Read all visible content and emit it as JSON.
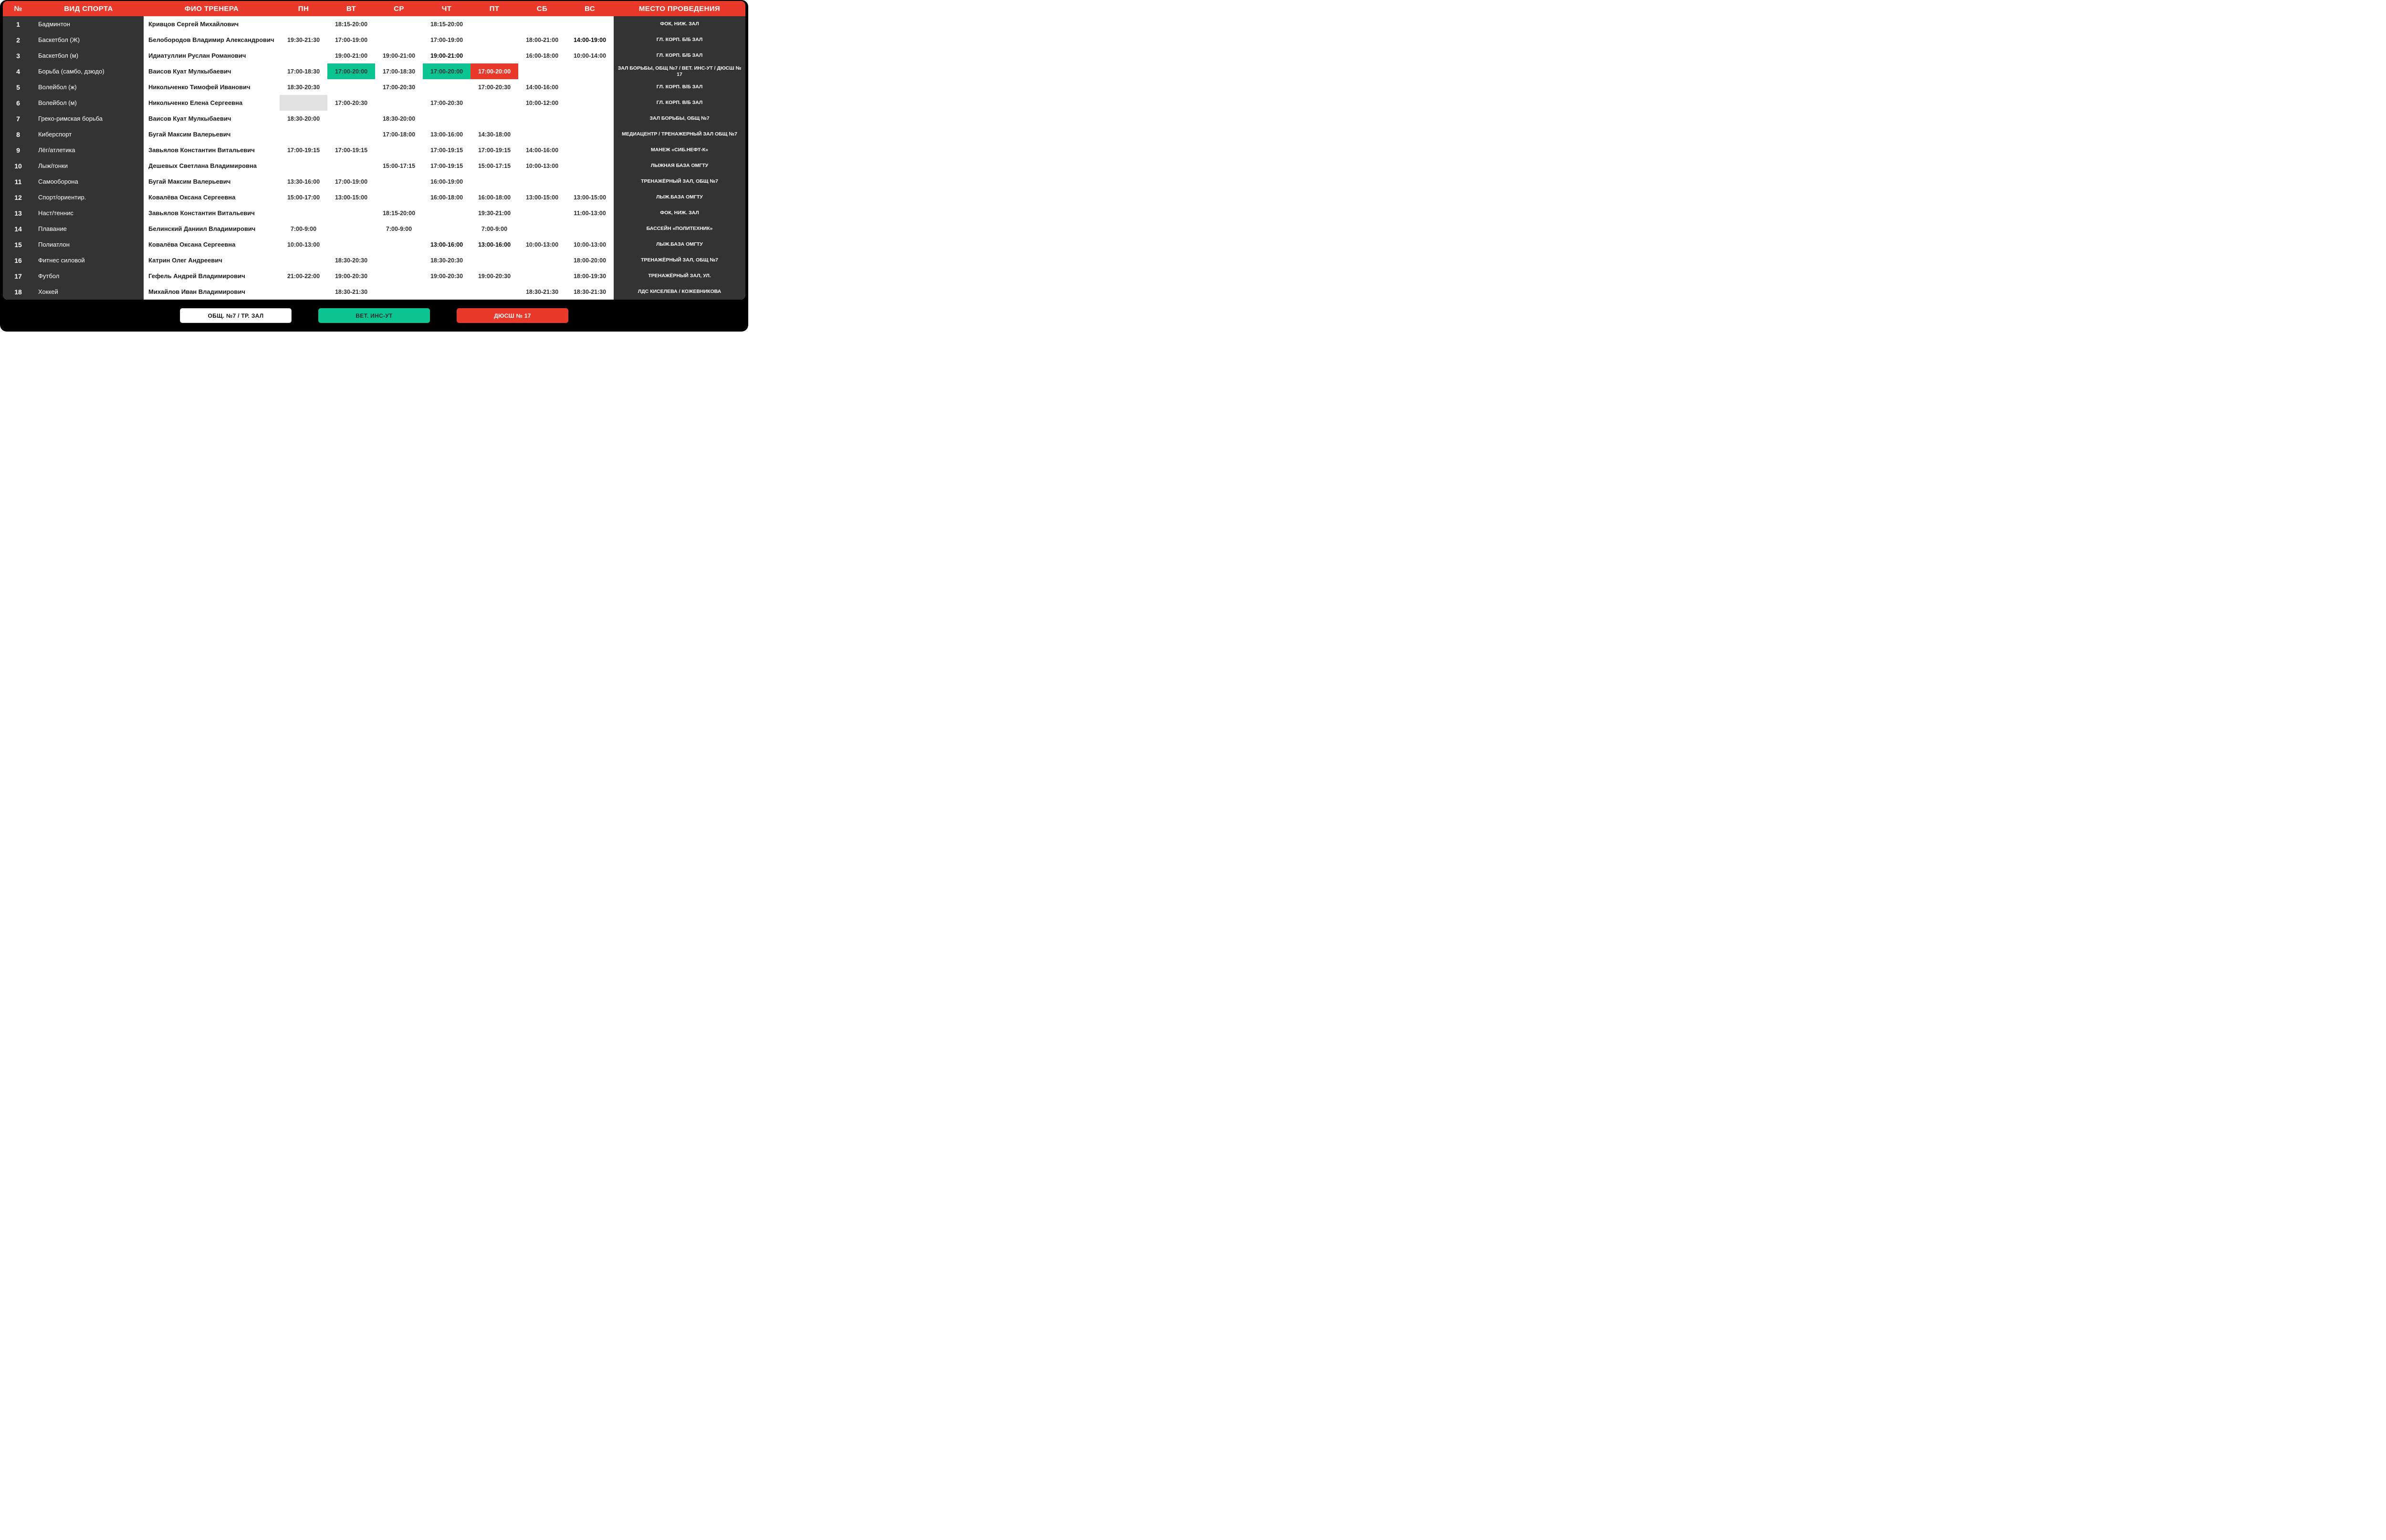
{
  "header": {
    "num": "№",
    "sport": "ВИД СПОРТА",
    "trainer": "ФИО ТРЕНЕРА",
    "days": [
      "ПН",
      "ВТ",
      "СР",
      "ЧТ",
      "ПТ",
      "СБ",
      "ВС"
    ],
    "venue": "МЕСТО ПРОВЕДЕНИЯ"
  },
  "colors": {
    "header_red": "#e8392b",
    "panel_dark": "#333333",
    "cell_green": "#0bc491",
    "cell_red": "#e8392b",
    "cell_gray": "#e2e2e2",
    "background": "#000000"
  },
  "rows": [
    {
      "num": "1",
      "sport": "Бадминтон",
      "trainer": "Кривцов Сергей Михайлович",
      "days": [
        null,
        {
          "t": "18:15-20:00"
        },
        null,
        {
          "t": "18:15-20:00"
        },
        null,
        null,
        null
      ],
      "venue": "ФОК,  НИЖ. ЗАЛ"
    },
    {
      "num": "2",
      "sport": "Баскетбол (Ж)",
      "trainer": "Белобородов Владимир Александрович",
      "days": [
        {
          "t": "19:30-21:30"
        },
        {
          "t": "17:00-19:00"
        },
        null,
        {
          "t": "17:00-19:00"
        },
        null,
        {
          "t": "18:00-21:00"
        },
        {
          "t": "14:00-19:00",
          "bold": true
        }
      ],
      "venue": "ГЛ. КОРП. Б/Б ЗАЛ"
    },
    {
      "num": "3",
      "sport": "Баскетбол (м)",
      "trainer": "Идиатуллин Руслан Романович",
      "days": [
        null,
        {
          "t": "19:00-21:00"
        },
        {
          "t": "19:00-21:00"
        },
        {
          "t": "19:00-21:00",
          "bold": true
        },
        null,
        {
          "t": "16:00-18:00"
        },
        {
          "t": "10:00-14:00"
        }
      ],
      "venue": "ГЛ. КОРП. Б/Б ЗАЛ"
    },
    {
      "num": "4",
      "sport": "Борьба  (самбо, дзюдо)",
      "trainer": "Ваисов Куат Мулкыбаевич",
      "days": [
        {
          "t": "17:00-18:30"
        },
        {
          "t": "17:00-20:00",
          "bg": "green"
        },
        {
          "t": "17:00-18:30"
        },
        {
          "t": "17:00-20:00",
          "bg": "green"
        },
        {
          "t": "17:00-20:00",
          "bg": "red"
        },
        null,
        null
      ],
      "venue": "ЗАЛ БОРЬБЫ, ОБЩ №7 / ВЕТ. ИНС-УТ / ДЮСШ № 17"
    },
    {
      "num": "5",
      "sport": "Волейбол  (ж)",
      "trainer": "Никольченко Тимофей Иванович",
      "days": [
        {
          "t": "18:30-20:30"
        },
        null,
        {
          "t": "17:00-20:30"
        },
        null,
        {
          "t": "17:00-20:30"
        },
        {
          "t": "14:00-16:00"
        },
        null
      ],
      "venue": "ГЛ. КОРП. В/Б ЗАЛ"
    },
    {
      "num": "6",
      "sport": "Волейбол  (м)",
      "trainer": "Никольченко Елена Сергеевна",
      "days": [
        {
          "t": "",
          "bg": "gray"
        },
        {
          "t": "17:00-20:30"
        },
        null,
        {
          "t": "17:00-20:30"
        },
        null,
        {
          "t": "10:00-12:00"
        },
        null
      ],
      "venue": "ГЛ. КОРП. В/Б ЗАЛ"
    },
    {
      "num": "7",
      "sport": "Греко-римская борьба",
      "trainer": "Ваисов Куат Мулкыбаевич",
      "days": [
        {
          "t": "18:30-20:00"
        },
        null,
        {
          "t": "18:30-20:00"
        },
        null,
        null,
        null,
        null
      ],
      "venue": "ЗАЛ БОРЬБЫ, ОБЩ №7"
    },
    {
      "num": "8",
      "sport": "Киберспорт",
      "trainer": "Бугай Максим Валерьевич",
      "days": [
        null,
        null,
        {
          "t": "17:00-18:00"
        },
        {
          "t": "13:00-16:00"
        },
        {
          "t": "14:30-18:00"
        },
        null,
        null
      ],
      "venue": "МЕДИАЦЕНТР / ТРЕНАЖЕРНЫЙ ЗАЛ ОБЩ №7"
    },
    {
      "num": "9",
      "sport": "Лёг/атлетика",
      "trainer": "Завьялов Константин Витальевич",
      "days": [
        {
          "t": "17:00-19:15"
        },
        {
          "t": "17:00-19:15"
        },
        null,
        {
          "t": "17:00-19:15"
        },
        {
          "t": "17:00-19:15"
        },
        {
          "t": "14:00-16:00"
        },
        null
      ],
      "venue": "МАНЕЖ  «СИБ.НЕФТ-К»"
    },
    {
      "num": "10",
      "sport": "Лыж/гонки",
      "trainer": "Дешевых Светлана Владимировна",
      "days": [
        null,
        null,
        {
          "t": "15:00-17:15"
        },
        {
          "t": "17:00-19:15"
        },
        {
          "t": "15:00-17:15"
        },
        {
          "t": "10:00-13:00"
        },
        null
      ],
      "venue": "ЛЫЖНАЯ БАЗА ОМГТУ"
    },
    {
      "num": "11",
      "sport": "Самооборона",
      "trainer": "Бугай Максим Валерьевич",
      "days": [
        {
          "t": "13:30-16:00"
        },
        {
          "t": "17:00-19:00"
        },
        null,
        {
          "t": "16:00-19:00"
        },
        null,
        null,
        null
      ],
      "venue": "ТРЕНАЖЁРНЫЙ ЗАЛ, ОБЩ №7"
    },
    {
      "num": "12",
      "sport": "Спорт/ориентир.",
      "trainer": "Ковалёва Оксана Сергеевна",
      "days": [
        {
          "t": "15:00-17:00"
        },
        {
          "t": "13:00-15:00"
        },
        null,
        {
          "t": "16:00-18:00"
        },
        {
          "t": "16:00-18:00"
        },
        {
          "t": "13:00-15:00"
        },
        {
          "t": "13:00-15:00"
        }
      ],
      "venue": "ЛЫЖ.БАЗА ОМГТУ"
    },
    {
      "num": "13",
      "sport": "Наст/теннис",
      "trainer": "Завьялов Константин Витальевич",
      "days": [
        null,
        null,
        {
          "t": "18:15-20:00"
        },
        null,
        {
          "t": "19:30-21:00"
        },
        null,
        {
          "t": "11:00-13:00"
        }
      ],
      "venue": "ФОК, НИЖ. ЗАЛ"
    },
    {
      "num": "14",
      "sport": "Плавание",
      "trainer": "Белинский Даниил Владимирович",
      "days": [
        {
          "t": "7:00-9:00"
        },
        null,
        {
          "t": "7:00-9:00"
        },
        null,
        {
          "t": "7:00-9:00"
        },
        null,
        null
      ],
      "venue": "БАССЕЙН «ПОЛИТЕХНИК»"
    },
    {
      "num": "15",
      "sport": "Полиатлон",
      "trainer": "Ковалёва Оксана Сергеевна",
      "days": [
        {
          "t": "10:00-13:00"
        },
        null,
        null,
        {
          "t": "13:00-16:00",
          "bold": true
        },
        {
          "t": "13:00-16:00",
          "bold": true
        },
        {
          "t": "10:00-13:00"
        },
        {
          "t": "10:00-13:00"
        }
      ],
      "venue": "ЛЫЖ.БАЗА ОМГТУ"
    },
    {
      "num": "16",
      "sport": "Фитнес силовой",
      "trainer": "Катрин Олег Андреевич",
      "days": [
        null,
        {
          "t": "18:30-20:30"
        },
        null,
        {
          "t": "18:30-20:30"
        },
        null,
        null,
        {
          "t": "18:00-20:00"
        }
      ],
      "venue": "ТРЕНАЖЁРНЫЙ ЗАЛ, ОБЩ №7"
    },
    {
      "num": "17",
      "sport": "Футбол",
      "trainer": "Гефель Андрей Владимирович",
      "days": [
        {
          "t": "21:00-22:00"
        },
        {
          "t": "19:00-20:30"
        },
        null,
        {
          "t": "19:00-20:30"
        },
        {
          "t": "19:00-20:30"
        },
        null,
        {
          "t": "18:00-19:30"
        }
      ],
      "venue": "ТРЕНАЖЁРНЫЙ ЗАЛ, УЛ."
    },
    {
      "num": "18",
      "sport": "Хоккей",
      "trainer": "Михайлов Иван Владимирович",
      "days": [
        null,
        {
          "t": "18:30-21:30"
        },
        null,
        null,
        null,
        {
          "t": "18:30-21:30"
        },
        {
          "t": "18:30-21:30"
        }
      ],
      "venue": "ЛДС КИСЕЛЕВА / КОЖЕВНИКОВА"
    }
  ],
  "legend": [
    {
      "label": "ОБЩ. №7 / ТР. ЗАЛ",
      "style": "white"
    },
    {
      "label": "ВЕТ. ИНС-УТ",
      "style": "green"
    },
    {
      "label": "ДЮСШ № 17",
      "style": "red"
    }
  ]
}
